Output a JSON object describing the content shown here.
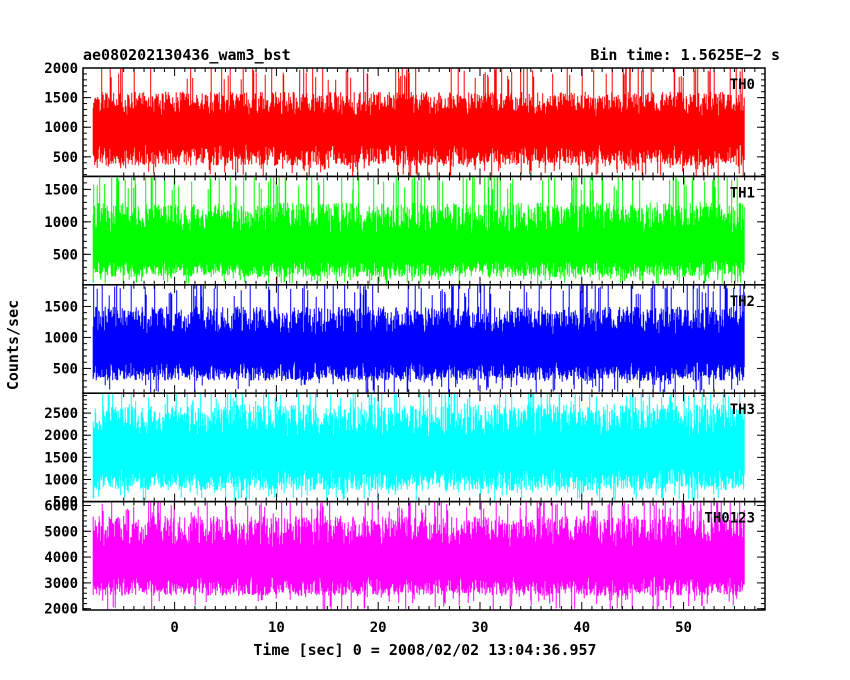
{
  "header": {
    "title": "ae080202130436_wam3_bst",
    "bin_time": "Bin time: 1.5625E−2 s"
  },
  "chart_data": {
    "type": "line",
    "xlabel": "Time [sec] 0 = 2008/02/02 13:04:36.957",
    "ylabel": "Counts/sec",
    "xlim": [
      -9,
      58
    ],
    "x_range": [
      -8,
      56
    ],
    "x_ticks": [
      0,
      10,
      20,
      30,
      40,
      50
    ],
    "x_tick_labels": [
      "0",
      "10",
      "20",
      "30",
      "40",
      "50"
    ],
    "panels": [
      {
        "name": "TH0",
        "color": "#ff0000",
        "ylim": [
          170,
          2000
        ],
        "y_ticks": [
          500,
          1000,
          1500,
          2000
        ],
        "y_tick_labels": [
          "500",
          "1000",
          "1500",
          "2000"
        ],
        "mean": 1000,
        "band_low": 350,
        "band_high": 1600
      },
      {
        "name": "TH1",
        "color": "#00ff00",
        "ylim": [
          30,
          1700
        ],
        "y_ticks": [
          500,
          1000,
          1500
        ],
        "y_tick_labels": [
          "500",
          "1000",
          "1500"
        ],
        "mean": 620,
        "band_low": 150,
        "band_high": 1300
      },
      {
        "name": "TH2",
        "color": "#0000ff",
        "ylim": [
          100,
          1850
        ],
        "y_ticks": [
          500,
          1000,
          1500
        ],
        "y_tick_labels": [
          "500",
          "1000",
          "1500"
        ],
        "mean": 850,
        "band_low": 300,
        "band_high": 1500
      },
      {
        "name": "TH3",
        "color": "#00ffff",
        "ylim": [
          500,
          2950
        ],
        "y_ticks": [
          500,
          1000,
          1500,
          2000,
          2500
        ],
        "y_tick_labels": [
          "500",
          "1000",
          "1500",
          "2000",
          "2500"
        ],
        "mean": 1650,
        "band_low": 750,
        "band_high": 2700
      },
      {
        "name": "TH0123",
        "color": "#ff00ff",
        "ylim": [
          1950,
          6150
        ],
        "y_ticks": [
          2000,
          3000,
          4000,
          5000,
          6000
        ],
        "y_tick_labels": [
          "2000",
          "3000",
          "4000",
          "5000",
          "6000"
        ],
        "mean": 3850,
        "band_low": 2500,
        "band_high": 5600
      }
    ]
  }
}
